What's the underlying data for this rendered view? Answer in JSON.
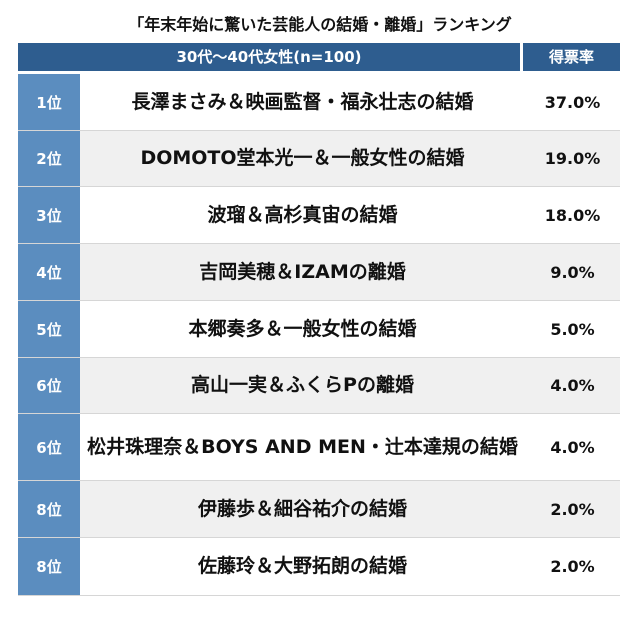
{
  "title": "「年末年始に驚いた芸能人の結婚・離婚」ランキング",
  "chart_data": {
    "type": "table",
    "header": {
      "group": "30代〜40代女性(n=100)",
      "rate": "得票率"
    },
    "rows": [
      {
        "rank": "1位",
        "name": "長澤まさみ＆映画監督・福永壮志の結婚",
        "rate": "37.0%",
        "value": 37.0
      },
      {
        "rank": "2位",
        "name": "DOMOTO堂本光一＆一般女性の結婚",
        "rate": "19.0%",
        "value": 19.0
      },
      {
        "rank": "3位",
        "name": "波瑠＆高杉真宙の結婚",
        "rate": "18.0%",
        "value": 18.0
      },
      {
        "rank": "4位",
        "name": "吉岡美穂＆IZAMの離婚",
        "rate": "9.0%",
        "value": 9.0
      },
      {
        "rank": "5位",
        "name": "本郷奏多＆一般女性の結婚",
        "rate": "5.0%",
        "value": 5.0
      },
      {
        "rank": "6位",
        "name": "高山一実＆ふくらPの離婚",
        "rate": "4.0%",
        "value": 4.0
      },
      {
        "rank": "6位",
        "name": "松井珠理奈＆BOYS AND MEN・辻本達規の結婚",
        "rate": "4.0%",
        "value": 4.0
      },
      {
        "rank": "8位",
        "name": "伊藤歩＆細谷祐介の結婚",
        "rate": "2.0%",
        "value": 2.0
      },
      {
        "rank": "8位",
        "name": "佐藤玲＆大野拓朗の結婚",
        "rate": "2.0%",
        "value": 2.0
      }
    ]
  }
}
